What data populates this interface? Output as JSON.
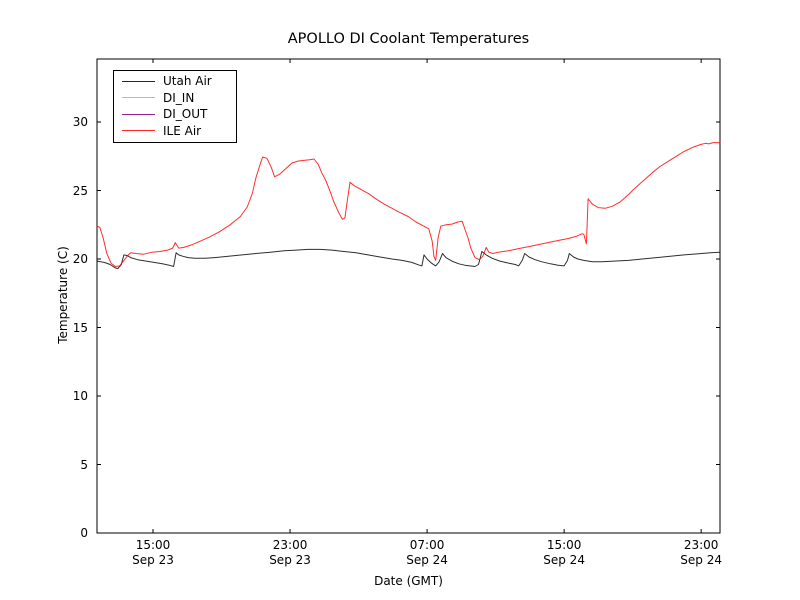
{
  "chart_data": {
    "type": "line",
    "title": "APOLLO DI Coolant Temperatures",
    "xlabel": "Date (GMT)",
    "ylabel": "Temperature (C)",
    "grid": false,
    "legend_position": "upper left",
    "x_unit": "hours since Sep 23 00:00 GMT",
    "xlim": [
      11.73,
      48.1
    ],
    "ylim": [
      0,
      34.6
    ],
    "y_ticks": [
      0,
      5,
      10,
      15,
      20,
      25,
      30
    ],
    "x_ticks": [
      {
        "t": 15,
        "time": "15:00",
        "date": "Sep 23"
      },
      {
        "t": 23,
        "time": "23:00",
        "date": "Sep 23"
      },
      {
        "t": 31,
        "time": "07:00",
        "date": "Sep 24"
      },
      {
        "t": 39,
        "time": "15:00",
        "date": "Sep 24"
      },
      {
        "t": 47,
        "time": "23:00",
        "date": "Sep 24"
      }
    ],
    "series": [
      {
        "name": "Utah Air",
        "color": "#000000",
        "points": [
          [
            11.73,
            19.85
          ],
          [
            12.15,
            19.75
          ],
          [
            12.5,
            19.6
          ],
          [
            12.8,
            19.35
          ],
          [
            12.95,
            19.3
          ],
          [
            13.15,
            19.6
          ],
          [
            13.3,
            20.3
          ],
          [
            13.5,
            20.25
          ],
          [
            13.7,
            20.1
          ],
          [
            14.1,
            19.95
          ],
          [
            14.6,
            19.85
          ],
          [
            15.05,
            19.75
          ],
          [
            15.55,
            19.65
          ],
          [
            15.95,
            19.55
          ],
          [
            16.2,
            19.45
          ],
          [
            16.35,
            20.45
          ],
          [
            16.5,
            20.3
          ],
          [
            16.75,
            20.2
          ],
          [
            17.05,
            20.1
          ],
          [
            17.45,
            20.05
          ],
          [
            18.05,
            20.05
          ],
          [
            18.6,
            20.1
          ],
          [
            19.4,
            20.2
          ],
          [
            20.2,
            20.3
          ],
          [
            21.0,
            20.4
          ],
          [
            21.85,
            20.5
          ],
          [
            22.65,
            20.6
          ],
          [
            23.35,
            20.65
          ],
          [
            24.05,
            20.7
          ],
          [
            24.75,
            20.7
          ],
          [
            25.45,
            20.65
          ],
          [
            26.15,
            20.55
          ],
          [
            26.85,
            20.45
          ],
          [
            27.55,
            20.3
          ],
          [
            28.25,
            20.15
          ],
          [
            28.95,
            20.0
          ],
          [
            29.55,
            19.9
          ],
          [
            30.1,
            19.75
          ],
          [
            30.55,
            19.55
          ],
          [
            30.7,
            19.5
          ],
          [
            30.82,
            20.3
          ],
          [
            31.0,
            20.0
          ],
          [
            31.25,
            19.7
          ],
          [
            31.5,
            19.5
          ],
          [
            31.7,
            19.8
          ],
          [
            31.9,
            20.4
          ],
          [
            32.1,
            20.1
          ],
          [
            32.45,
            19.85
          ],
          [
            32.85,
            19.65
          ],
          [
            33.2,
            19.55
          ],
          [
            33.5,
            19.5
          ],
          [
            33.8,
            19.45
          ],
          [
            34.0,
            19.6
          ],
          [
            34.2,
            20.55
          ],
          [
            34.45,
            20.3
          ],
          [
            34.8,
            20.05
          ],
          [
            35.25,
            19.85
          ],
          [
            35.75,
            19.7
          ],
          [
            36.15,
            19.6
          ],
          [
            36.35,
            19.5
          ],
          [
            36.55,
            19.9
          ],
          [
            36.7,
            20.4
          ],
          [
            36.95,
            20.15
          ],
          [
            37.3,
            19.95
          ],
          [
            37.7,
            19.8
          ],
          [
            38.2,
            19.65
          ],
          [
            38.65,
            19.55
          ],
          [
            39.0,
            19.5
          ],
          [
            39.2,
            19.9
          ],
          [
            39.3,
            20.4
          ],
          [
            39.55,
            20.15
          ],
          [
            39.8,
            20.0
          ],
          [
            40.15,
            19.9
          ],
          [
            40.65,
            19.8
          ],
          [
            41.2,
            19.8
          ],
          [
            41.9,
            19.85
          ],
          [
            42.75,
            19.9
          ],
          [
            43.55,
            20.0
          ],
          [
            44.4,
            20.1
          ],
          [
            45.2,
            20.2
          ],
          [
            46.0,
            20.3
          ],
          [
            46.85,
            20.38
          ],
          [
            47.55,
            20.45
          ],
          [
            48.1,
            20.5
          ]
        ]
      },
      {
        "name": "DI_IN",
        "color": "#ffa500",
        "points": []
      },
      {
        "name": "DI_OUT",
        "color": "#800080",
        "points": []
      },
      {
        "name": "ILE Air",
        "color": "#ff0000",
        "points": [
          [
            11.73,
            22.4
          ],
          [
            11.9,
            22.3
          ],
          [
            12.1,
            21.5
          ],
          [
            12.3,
            20.4
          ],
          [
            12.55,
            19.7
          ],
          [
            12.8,
            19.45
          ],
          [
            13.05,
            19.5
          ],
          [
            13.3,
            19.9
          ],
          [
            13.55,
            20.3
          ],
          [
            13.7,
            20.45
          ],
          [
            14.0,
            20.4
          ],
          [
            14.45,
            20.35
          ],
          [
            14.95,
            20.5
          ],
          [
            15.4,
            20.55
          ],
          [
            15.85,
            20.65
          ],
          [
            16.15,
            20.8
          ],
          [
            16.3,
            21.2
          ],
          [
            16.5,
            20.8
          ],
          [
            16.8,
            20.85
          ],
          [
            17.3,
            21.05
          ],
          [
            17.75,
            21.3
          ],
          [
            18.3,
            21.6
          ],
          [
            18.9,
            22.0
          ],
          [
            19.5,
            22.5
          ],
          [
            20.1,
            23.1
          ],
          [
            20.5,
            23.8
          ],
          [
            20.8,
            24.8
          ],
          [
            21.0,
            25.9
          ],
          [
            21.25,
            26.9
          ],
          [
            21.4,
            27.45
          ],
          [
            21.65,
            27.35
          ],
          [
            21.9,
            26.7
          ],
          [
            22.1,
            26.0
          ],
          [
            22.4,
            26.2
          ],
          [
            22.75,
            26.6
          ],
          [
            23.1,
            27.0
          ],
          [
            23.45,
            27.15
          ],
          [
            23.8,
            27.2
          ],
          [
            24.15,
            27.25
          ],
          [
            24.4,
            27.3
          ],
          [
            24.65,
            26.9
          ],
          [
            24.85,
            26.3
          ],
          [
            25.1,
            25.7
          ],
          [
            25.35,
            24.9
          ],
          [
            25.55,
            24.2
          ],
          [
            25.8,
            23.5
          ],
          [
            26.05,
            22.9
          ],
          [
            26.2,
            23.0
          ],
          [
            26.35,
            24.3
          ],
          [
            26.5,
            25.6
          ],
          [
            26.75,
            25.35
          ],
          [
            27.1,
            25.1
          ],
          [
            27.55,
            24.8
          ],
          [
            28.0,
            24.4
          ],
          [
            28.5,
            24.0
          ],
          [
            28.95,
            23.7
          ],
          [
            29.4,
            23.4
          ],
          [
            29.9,
            23.1
          ],
          [
            30.35,
            22.7
          ],
          [
            30.8,
            22.4
          ],
          [
            31.1,
            22.2
          ],
          [
            31.3,
            21.3
          ],
          [
            31.4,
            20.2
          ],
          [
            31.5,
            19.9
          ],
          [
            31.65,
            21.6
          ],
          [
            31.8,
            22.4
          ],
          [
            32.1,
            22.5
          ],
          [
            32.45,
            22.55
          ],
          [
            32.8,
            22.7
          ],
          [
            33.05,
            22.75
          ],
          [
            33.2,
            22.2
          ],
          [
            33.4,
            21.5
          ],
          [
            33.55,
            20.8
          ],
          [
            33.8,
            20.1
          ],
          [
            34.05,
            19.95
          ],
          [
            34.25,
            20.2
          ],
          [
            34.45,
            20.85
          ],
          [
            34.6,
            20.5
          ],
          [
            34.85,
            20.4
          ],
          [
            35.15,
            20.5
          ],
          [
            35.75,
            20.6
          ],
          [
            36.3,
            20.75
          ],
          [
            36.9,
            20.9
          ],
          [
            37.5,
            21.05
          ],
          [
            38.05,
            21.2
          ],
          [
            38.65,
            21.35
          ],
          [
            39.25,
            21.5
          ],
          [
            39.7,
            21.65
          ],
          [
            40.05,
            21.85
          ],
          [
            40.15,
            21.8
          ],
          [
            40.3,
            21.1
          ],
          [
            40.4,
            24.4
          ],
          [
            40.65,
            24.0
          ],
          [
            41.0,
            23.75
          ],
          [
            41.4,
            23.7
          ],
          [
            41.8,
            23.85
          ],
          [
            42.25,
            24.15
          ],
          [
            42.75,
            24.7
          ],
          [
            43.2,
            25.25
          ],
          [
            43.7,
            25.8
          ],
          [
            44.15,
            26.3
          ],
          [
            44.6,
            26.75
          ],
          [
            45.1,
            27.15
          ],
          [
            45.55,
            27.5
          ],
          [
            46.0,
            27.85
          ],
          [
            46.5,
            28.15
          ],
          [
            46.95,
            28.35
          ],
          [
            47.25,
            28.45
          ],
          [
            47.45,
            28.4
          ],
          [
            47.7,
            28.5
          ],
          [
            48.1,
            28.5
          ]
        ]
      }
    ]
  }
}
